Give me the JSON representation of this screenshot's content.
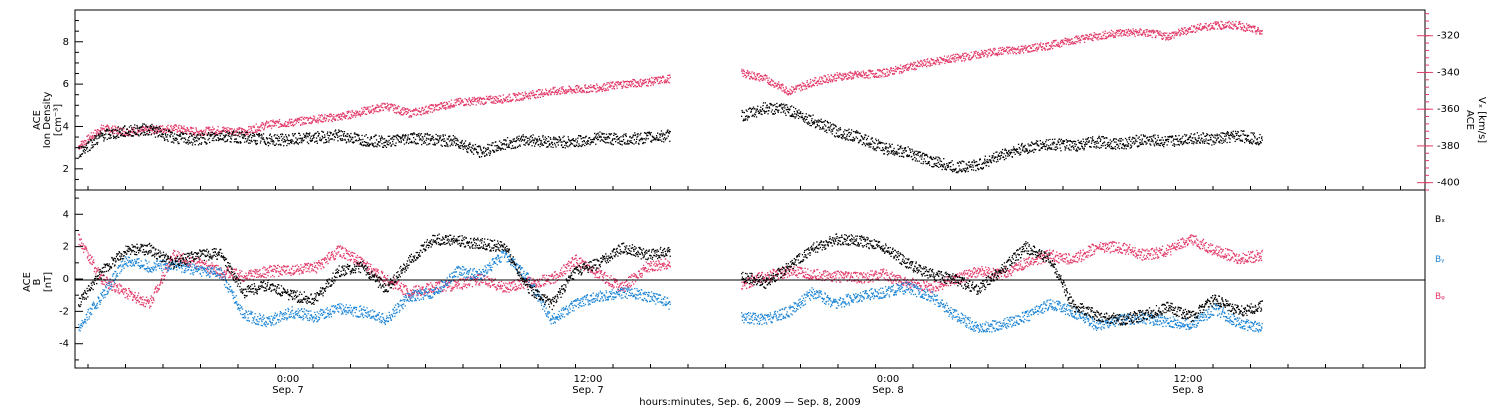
{
  "chart_data": [
    {
      "type": "scatter",
      "panel": "top",
      "left_axis": {
        "label_line1": "ACE",
        "label_line2": "Ion Density",
        "unit": "[cm⁻³]",
        "ylim": [
          1.0,
          9.5
        ],
        "ticks": [
          2,
          4,
          6,
          8
        ]
      },
      "right_axis": {
        "label_line1": "ACE",
        "label_line2": "Vₓ [km/s]",
        "ylim": [
          -404,
          -306
        ],
        "ticks": [
          -400,
          -380,
          -360,
          -340,
          -320
        ]
      },
      "grid": false,
      "series": [
        {
          "role": "density",
          "color": "#000000",
          "axis": "left",
          "x": [
            0,
            1,
            2,
            3,
            4,
            5,
            6,
            7,
            8,
            9,
            10,
            11,
            12,
            13,
            14,
            15,
            16,
            17,
            18,
            19,
            20,
            21,
            22,
            23,
            24,
            25,
            26,
            27,
            28,
            29,
            30,
            31,
            32,
            33,
            34,
            35,
            36,
            37,
            38,
            39,
            40,
            41,
            42,
            43,
            44,
            45,
            46,
            47,
            48,
            49,
            50
          ],
          "y": [
            2.8,
            3.6,
            3.8,
            3.9,
            3.5,
            3.4,
            3.6,
            3.5,
            3.4,
            3.4,
            3.5,
            3.6,
            3.4,
            3.3,
            3.5,
            3.4,
            3.3,
            2.8,
            3.2,
            3.4,
            3.3,
            3.3,
            3.5,
            3.4,
            3.5,
            3.6,
            null,
            null,
            4.5,
            4.9,
            4.8,
            4.3,
            3.8,
            3.5,
            3.0,
            2.8,
            2.4,
            2.1,
            2.2,
            2.7,
            3.0,
            3.2,
            3.1,
            3.3,
            3.2,
            3.4,
            3.3,
            3.5,
            3.4,
            3.6,
            3.4
          ]
        },
        {
          "role": "vx",
          "color": "#e23b6a",
          "axis": "right",
          "x": [
            0,
            1,
            2,
            3,
            4,
            5,
            6,
            7,
            8,
            9,
            10,
            11,
            12,
            13,
            14,
            15,
            16,
            17,
            18,
            19,
            20,
            21,
            22,
            23,
            24,
            25,
            26,
            27,
            28,
            29,
            30,
            31,
            32,
            33,
            34,
            35,
            36,
            37,
            38,
            39,
            40,
            41,
            42,
            43,
            44,
            45,
            46,
            47,
            48,
            49,
            50
          ],
          "y": [
            -380,
            -370,
            -372,
            -371,
            -370,
            -372,
            -371,
            -372,
            -368,
            -367,
            -365,
            -364,
            -361,
            -358,
            -362,
            -359,
            -356,
            -355,
            -354,
            -352,
            -350,
            -349,
            -348,
            -346,
            -345,
            -343,
            null,
            null,
            -340,
            -343,
            -350,
            -345,
            -342,
            -341,
            -340,
            -337,
            -334,
            -332,
            -330,
            -328,
            -327,
            -325,
            -322,
            -320,
            -318,
            -318,
            -320,
            -316,
            -314,
            -314,
            -318
          ]
        }
      ]
    },
    {
      "type": "scatter",
      "panel": "bottom",
      "y_axis": {
        "label_line1": "ACE",
        "label_line2": "B",
        "unit": "[nT]",
        "ylim": [
          -5.5,
          5.5
        ],
        "ticks": [
          -4,
          -2,
          0,
          2,
          4
        ]
      },
      "zero_line": 0,
      "grid": false,
      "series": [
        {
          "name": "Bₓ",
          "color": "#000000",
          "x": [
            0,
            1,
            2,
            3,
            4,
            5,
            6,
            7,
            8,
            9,
            10,
            11,
            12,
            13,
            14,
            15,
            16,
            17,
            18,
            19,
            20,
            21,
            22,
            23,
            24,
            25,
            26,
            27,
            28,
            29,
            30,
            31,
            32,
            33,
            34,
            35,
            36,
            37,
            38,
            39,
            40,
            41,
            42,
            43,
            44,
            45,
            46,
            47,
            48,
            49,
            50
          ],
          "y": [
            -1.5,
            0.5,
            1.8,
            1.9,
            1.0,
            1.5,
            1.6,
            -0.8,
            -0.3,
            -1.0,
            -1.2,
            0.5,
            0.8,
            -0.6,
            1.2,
            2.5,
            2.4,
            2.2,
            2.0,
            -0.5,
            -1.5,
            0.5,
            1.0,
            2.0,
            1.5,
            1.8,
            null,
            null,
            0.2,
            -0.2,
            0.8,
            1.9,
            2.5,
            2.4,
            2.0,
            1.0,
            0.3,
            0.0,
            -0.6,
            0.6,
            2.0,
            1.3,
            -1.6,
            -2.2,
            -2.5,
            -2.2,
            -1.7,
            -2.3,
            -1.2,
            -2.0,
            -1.6
          ]
        },
        {
          "name": "Bᵧ",
          "color": "#1f86d6",
          "x": [
            0,
            1,
            2,
            3,
            4,
            5,
            6,
            7,
            8,
            9,
            10,
            11,
            12,
            13,
            14,
            15,
            16,
            17,
            18,
            19,
            20,
            21,
            22,
            23,
            24,
            25,
            26,
            27,
            28,
            29,
            30,
            31,
            32,
            33,
            34,
            35,
            36,
            37,
            38,
            39,
            40,
            41,
            42,
            43,
            44,
            45,
            46,
            47,
            48,
            49,
            50
          ],
          "y": [
            -3.0,
            -1.0,
            1.2,
            0.8,
            0.9,
            0.6,
            0.4,
            -2.2,
            -2.6,
            -2.0,
            -2.3,
            -1.8,
            -2.0,
            -2.5,
            -1.0,
            -0.8,
            0.5,
            0.3,
            1.6,
            0.0,
            -2.5,
            -1.5,
            -1.0,
            -0.8,
            -1.0,
            -1.5,
            null,
            null,
            -2.3,
            -2.5,
            -2.0,
            -0.8,
            -1.5,
            -1.0,
            -0.8,
            -0.5,
            -1.0,
            -2.2,
            -3.0,
            -2.8,
            -2.3,
            -1.5,
            -2.0,
            -2.8,
            -2.5,
            -2.4,
            -2.6,
            -2.8,
            -1.8,
            -2.7,
            -3.0
          ]
        },
        {
          "name": "Bᵩ",
          "color": "#e23b6a",
          "x": [
            0,
            1,
            2,
            3,
            4,
            5,
            6,
            7,
            8,
            9,
            10,
            11,
            12,
            13,
            14,
            15,
            16,
            17,
            18,
            19,
            20,
            21,
            22,
            23,
            24,
            25,
            26,
            27,
            28,
            29,
            30,
            31,
            32,
            33,
            34,
            35,
            36,
            37,
            38,
            39,
            40,
            41,
            42,
            43,
            44,
            45,
            46,
            47,
            48,
            49,
            50
          ],
          "y": [
            2.5,
            0.0,
            -0.8,
            -1.5,
            1.5,
            1.0,
            0.5,
            0.2,
            0.5,
            0.6,
            0.7,
            1.8,
            1.0,
            0.0,
            -0.8,
            -0.5,
            -0.3,
            0.0,
            -0.5,
            -0.2,
            0.0,
            1.2,
            0.3,
            -0.5,
            0.8,
            1.0,
            null,
            null,
            -0.3,
            0.2,
            0.5,
            0.3,
            0.2,
            0.1,
            0.3,
            -0.2,
            -0.5,
            0.0,
            0.5,
            0.3,
            1.0,
            1.5,
            1.2,
            2.0,
            2.0,
            1.5,
            1.8,
            2.5,
            1.8,
            1.3,
            1.5
          ]
        }
      ],
      "legend": {
        "placement": "right",
        "entries": [
          "Bₓ",
          "Bᵧ",
          "Bᵩ"
        ]
      }
    }
  ],
  "x_axis": {
    "ticks": [
      {
        "time": "0:00",
        "date": "Sep. 7"
      },
      {
        "time": "12:00",
        "date": "Sep. 7"
      },
      {
        "time": "0:00",
        "date": "Sep. 8"
      },
      {
        "time": "12:00",
        "date": "Sep. 8"
      }
    ],
    "label": "hours:minutes, Sep.  6, 2009 — Sep.  8, 2009"
  },
  "labels": {
    "top_left_l1": "ACE",
    "top_left_l2": "Ion Density",
    "top_left_unit": "[cm⁻³]",
    "top_right_l1": "ACE",
    "top_right_l2": "Vₓ [km/s]",
    "bottom_left_l1": "ACE",
    "bottom_left_l2": "B",
    "bottom_left_unit": "[nT]",
    "legend_bx": "Bₓ",
    "legend_by": "Bᵧ",
    "legend_bz": "Bᵩ",
    "xlabel": "hours:minutes, Sep.  6, 2009 — Sep.  8, 2009"
  },
  "colors": {
    "black": "#000000",
    "red": "#e23b6a",
    "blue": "#1f86d6"
  }
}
